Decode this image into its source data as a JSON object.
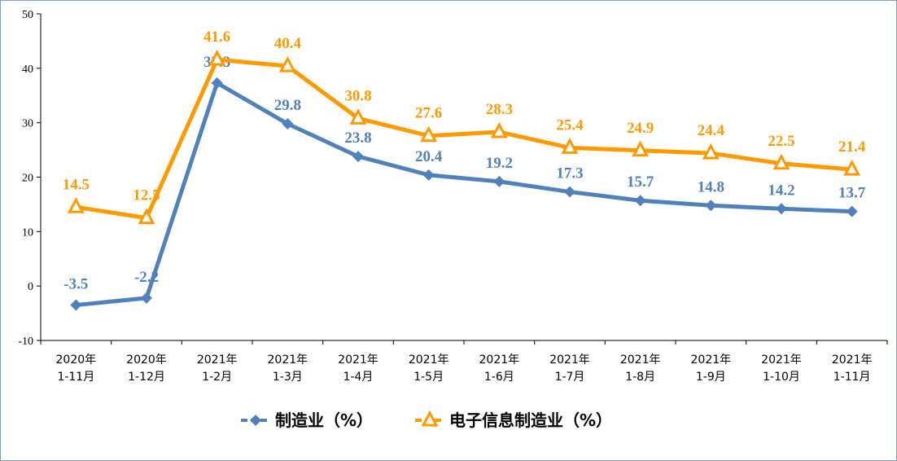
{
  "chart_data": {
    "type": "line",
    "categories": [
      [
        "2020年",
        "1-11月"
      ],
      [
        "2020年",
        "1-12月"
      ],
      [
        "2021年",
        "1-2月"
      ],
      [
        "2021年",
        "1-3月"
      ],
      [
        "2021年",
        "1-4月"
      ],
      [
        "2021年",
        "1-5月"
      ],
      [
        "2021年",
        "1-6月"
      ],
      [
        "2021年",
        "1-7月"
      ],
      [
        "2021年",
        "1-8月"
      ],
      [
        "2021年",
        "1-9月"
      ],
      [
        "2021年",
        "1-10月"
      ],
      [
        "2021年",
        "1-11月"
      ]
    ],
    "ylim": [
      -10,
      50
    ],
    "yticks": [
      -10,
      0,
      10,
      20,
      30,
      40,
      50
    ],
    "grid": false,
    "legend": "bottom",
    "series": [
      {
        "name": "制造业（%）",
        "color": "#4f81bd",
        "marker": "diamond",
        "values": [
          -3.5,
          -2.2,
          37.3,
          29.8,
          23.8,
          20.4,
          19.2,
          17.3,
          15.7,
          14.8,
          14.2,
          13.7
        ]
      },
      {
        "name": "电子信息制造业（%）",
        "color": "#ff9900",
        "marker": "triangle",
        "values": [
          14.5,
          12.5,
          41.6,
          40.4,
          30.8,
          27.6,
          28.3,
          25.4,
          24.9,
          24.4,
          22.5,
          21.4
        ]
      }
    ]
  }
}
